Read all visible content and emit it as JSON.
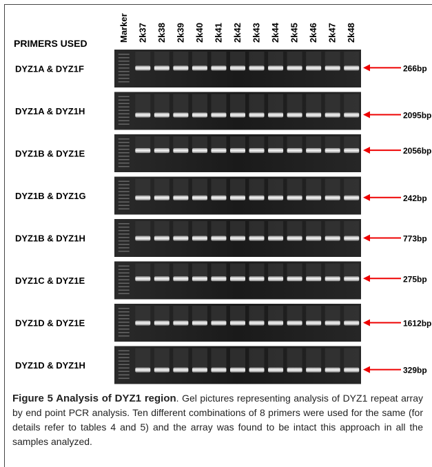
{
  "header": {
    "primers_label": "PRIMERS USED",
    "lanes": [
      "Marker",
      "2k37",
      "2k38",
      "2k39",
      "2k40",
      "2k41",
      "2k42",
      "2k43",
      "2k44",
      "2k45",
      "2k46",
      "2k47",
      "2k48"
    ]
  },
  "rows": [
    {
      "primers": "DYZ1A & DYZ1F",
      "size": "266bp"
    },
    {
      "primers": "DYZ1A & DYZ1H",
      "size": "2095bp"
    },
    {
      "primers": "DYZ1B & DYZ1E",
      "size": "2056bp"
    },
    {
      "primers": "DYZ1B & DYZ1G",
      "size": "242bp"
    },
    {
      "primers": "DYZ1B & DYZ1H",
      "size": "773bp"
    },
    {
      "primers": "DYZ1C & DYZ1E",
      "size": "275bp"
    },
    {
      "primers": "DYZ1D & DYZ1E",
      "size": "1612bp"
    },
    {
      "primers": "DYZ1D & DYZ1H",
      "size": "329bp"
    }
  ],
  "caption": {
    "label": "Figure 5 Analysis of DYZ1 region",
    "text": ". Gel pictures representing analysis of DYZ1 repeat array by end point PCR analysis. Ten different combinations of 8 primers were used for the same (for details refer to tables 4 and 5) and the array was found to be intact this approach in all the samples analyzed."
  }
}
